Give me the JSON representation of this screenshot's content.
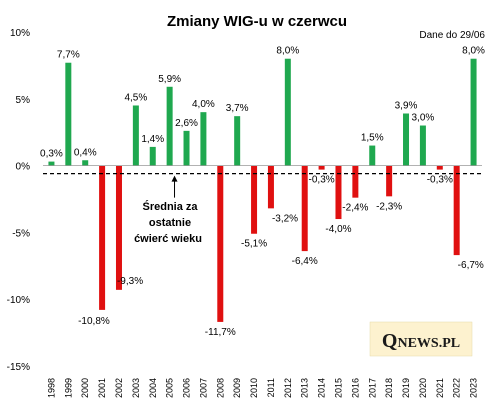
{
  "chart_data": {
    "type": "bar",
    "title": "Zmiany  WIG-u  w czerwcu",
    "subtitle": "Dane do 29/06",
    "categories": [
      "1998",
      "1999",
      "2000",
      "2001",
      "2002",
      "2003",
      "2004",
      "2005",
      "2006",
      "2007",
      "2008",
      "2009",
      "2010",
      "2011",
      "2012",
      "2013",
      "2014",
      "2015",
      "2016",
      "2017",
      "2018",
      "2019",
      "2020",
      "2021",
      "2022",
      "2023"
    ],
    "values": [
      0.3,
      7.7,
      0.4,
      -10.8,
      -9.3,
      4.5,
      1.4,
      5.9,
      2.6,
      4.0,
      -11.7,
      3.7,
      -5.1,
      -3.2,
      8.0,
      -6.4,
      -0.3,
      -4.0,
      -2.4,
      1.5,
      -2.3,
      3.9,
      3.0,
      -0.3,
      -6.7,
      8.0
    ],
    "data_labels": [
      "0,3%",
      "7,7%",
      "0,4%",
      "-10,8%",
      "-9,3%",
      "4,5%",
      "1,4%",
      "5,9%",
      "2,6%",
      "4,0%",
      "-11,7%",
      "3,7%",
      "-5,1%",
      "-3,2%",
      "8,0%",
      "-6,4%",
      "-0,3%",
      "-4,0%",
      "-2,4%",
      "1,5%",
      "-2,3%",
      "3,9%",
      "3,0%",
      "-0,3%",
      "-6,7%",
      "8,0%"
    ],
    "ylim": [
      -15,
      10
    ],
    "yticks": [
      10,
      5,
      0,
      -5,
      -10,
      -15
    ],
    "ytick_labels": [
      "10%",
      "5%",
      "0%",
      "-5%",
      "-10%",
      "-15%"
    ],
    "average_line": -0.6,
    "annotation": {
      "lines": [
        "Średnia za",
        "ostatnie",
        "ćwierć wieku"
      ],
      "points_to_year": "2006"
    },
    "colors": {
      "positive": "#1fa84f",
      "negative": "#e01010",
      "average": "#000000"
    },
    "grid": false,
    "legend": "none"
  },
  "logo": {
    "text": "QNEWS.PL"
  }
}
